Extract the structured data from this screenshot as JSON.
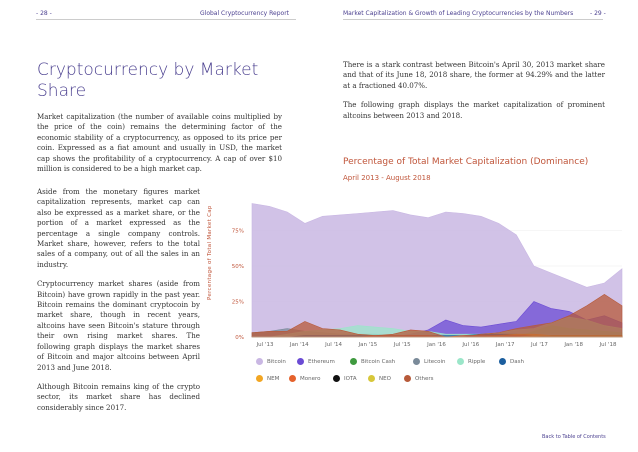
{
  "header": {
    "left_page": "- 28 -",
    "left_title": "Global Cryptocurrency Report",
    "right_title": "Market Capitalization & Growth of Leading Cryptocurrencies by the Numbers",
    "right_page": "- 29 -"
  },
  "left": {
    "title": "Cryptocurrency by Market Share",
    "intro": "Market capitalization (the number of available coins multiplied by the price of the coin) remains the determining factor of the economic stability of a cryptocurrency, as opposed to its price per coin. Expressed as a fiat amount and usually in USD, the market cap shows the profitability of a cryptocurrency. A cap of over $10 million is considered to be a high market cap.",
    "p1": "Aside from the monetary figures market capitalization represents, market cap can also be expressed as a market share, or the portion of a market expressed as the percentage a single company controls. Market share, however, refers to the total sales of a company, out of all the sales in an industry.",
    "p2": "Cryptocurrency market shares (aside from Bitcoin) have grown rapidly in the past year. Bitcoin remains the dominant cryptocoin by market share, though in recent years, altcoins have seen Bitcoin's stature through their own rising market shares. The following graph displays the market shares of Bitcoin and major altcoins between April 2013 and June 2018.",
    "p3": "Although Bitcoin remains king of the crypto sector, its market share has declined considerably since 2017."
  },
  "right": {
    "p1": "There is a stark contrast between Bitcoin's April 30, 2013 market share and that of its June 18, 2018 share, the former at 94.29% and the latter at a fractioned 40.07%.",
    "p2": "The following graph displays the market capitalization of prominent altcoins between 2013 and 2018."
  },
  "chart_data": {
    "type": "area",
    "title": "Percentage of Total Market Capitalization (Dominance)",
    "subtitle": "April 2013 - August 2018",
    "ylabel": "Percentage of Total Market Cap",
    "ylim": [
      0,
      100
    ],
    "yticks": [
      "0%",
      "25%",
      "50%",
      "75%"
    ],
    "xticks": [
      "Jul '13",
      "Jan '14",
      "Jul '14",
      "Jan '15",
      "Jul '15",
      "Jan '16",
      "Jul '16",
      "Jan '17",
      "Jul '17",
      "Jan '18",
      "Jul '18"
    ],
    "x": [
      0,
      0.5,
      1,
      1.5,
      2,
      2.5,
      3,
      3.5,
      4,
      4.5,
      5,
      5.5,
      6,
      6.5,
      7,
      7.5,
      8,
      8.5,
      9,
      9.5,
      10,
      10.5
    ],
    "series": [
      {
        "name": "Bitcoin",
        "color": "#c9b7e3",
        "values": [
          94,
          92,
          88,
          80,
          85,
          86,
          87,
          88,
          89,
          86,
          84,
          88,
          87,
          85,
          80,
          72,
          50,
          45,
          40,
          35,
          38,
          48
        ]
      },
      {
        "name": "Ethereum",
        "color": "#6b4bd4",
        "values": [
          0,
          0,
          0,
          0,
          0,
          0,
          0,
          0,
          0,
          2,
          5,
          12,
          8,
          7,
          9,
          11,
          25,
          20,
          18,
          12,
          15,
          10
        ]
      },
      {
        "name": "Bitcoin Cash",
        "color": "#3f9a3f",
        "values": [
          0,
          0,
          0,
          0,
          0,
          0,
          0,
          0,
          0,
          0,
          0,
          0,
          0,
          0,
          0,
          0,
          4,
          8,
          6,
          5,
          4,
          3
        ]
      },
      {
        "name": "Litecoin",
        "color": "#7a8a99",
        "values": [
          3,
          4,
          6,
          4,
          3,
          2,
          2,
          2,
          1,
          1,
          1,
          1,
          1,
          1,
          1,
          1,
          2,
          2,
          2,
          2,
          1,
          1
        ]
      },
      {
        "name": "Ripple",
        "color": "#9be6c9",
        "values": [
          0,
          0,
          2,
          4,
          5,
          6,
          8,
          7,
          6,
          4,
          4,
          2,
          2,
          2,
          3,
          5,
          6,
          10,
          14,
          12,
          8,
          6
        ]
      },
      {
        "name": "Dash",
        "color": "#1b5e9e",
        "values": [
          0,
          0,
          0,
          1,
          1,
          1,
          1,
          1,
          1,
          1,
          1,
          1,
          1,
          2,
          2,
          2,
          1,
          1,
          1,
          1,
          1,
          1
        ]
      },
      {
        "name": "NEM",
        "color": "#f2a623",
        "values": [
          0,
          0,
          0,
          0,
          0,
          0,
          0,
          0,
          0,
          0,
          0,
          0,
          0,
          0,
          1,
          2,
          2,
          1,
          1,
          1,
          1,
          0
        ]
      },
      {
        "name": "Monero",
        "color": "#e5622c",
        "values": [
          0,
          0,
          0,
          0,
          0,
          0,
          0,
          1,
          1,
          1,
          1,
          0,
          1,
          1,
          1,
          1,
          1,
          1,
          1,
          1,
          1,
          1
        ]
      },
      {
        "name": "IOTA",
        "color": "#111111",
        "values": [
          0,
          0,
          0,
          0,
          0,
          0,
          0,
          0,
          0,
          0,
          0,
          0,
          0,
          0,
          0,
          0,
          0,
          1,
          1,
          1,
          1,
          1
        ]
      },
      {
        "name": "NEO",
        "color": "#d7c73a",
        "values": [
          0,
          0,
          0,
          0,
          0,
          0,
          0,
          0,
          0,
          0,
          0,
          0,
          0,
          0,
          0,
          0,
          1,
          1,
          1,
          1,
          1,
          1
        ]
      },
      {
        "name": "Others",
        "color": "#b75a3a",
        "values": [
          3,
          4,
          4,
          11,
          6,
          5,
          2,
          1,
          2,
          5,
          4,
          0,
          0,
          2,
          3,
          6,
          8,
          10,
          15,
          22,
          30,
          22
        ]
      }
    ]
  },
  "footer": {
    "back": "Back to Table of Contents"
  }
}
